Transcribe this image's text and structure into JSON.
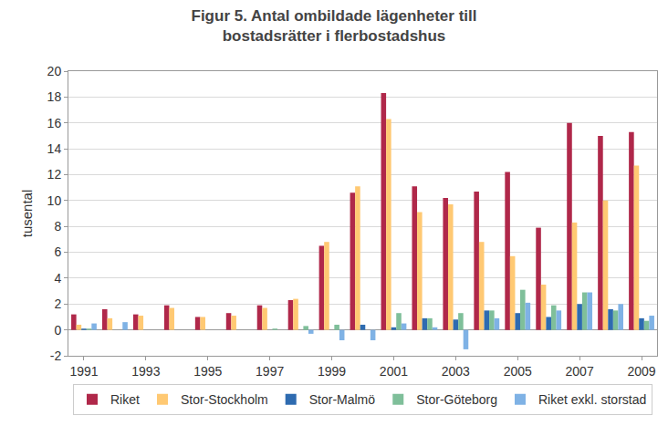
{
  "chart_data": {
    "type": "bar",
    "title": "Figur 5. Antal ombildade lägenheter till\nbostadsrätter i flerbostadshus",
    "y_label": "tusental",
    "categories": [
      "1991",
      null,
      "1993",
      null,
      "1995",
      null,
      "1997",
      null,
      "1999",
      null,
      "2001",
      null,
      "2003",
      null,
      "2005",
      null,
      "2007",
      null,
      "2009"
    ],
    "series": [
      {
        "name": "Riket",
        "color": "#b0284a",
        "values": [
          1.2,
          1.6,
          1.2,
          1.9,
          1.0,
          1.3,
          1.9,
          2.3,
          6.5,
          10.6,
          18.3,
          11.1,
          10.2,
          10.7,
          12.2,
          7.9,
          16.0,
          15.0,
          15.3
        ]
      },
      {
        "name": "Stor-Stockholm",
        "color": "#ffc973",
        "values": [
          0.4,
          0.9,
          1.1,
          1.7,
          1.0,
          1.1,
          1.7,
          2.4,
          6.8,
          11.1,
          16.3,
          9.1,
          9.7,
          6.8,
          5.7,
          3.5,
          8.3,
          10.0,
          12.7
        ]
      },
      {
        "name": "Stor-Malmö",
        "color": "#2e6bb0",
        "values": [
          0.1,
          0.0,
          0.0,
          0.0,
          0.0,
          0.0,
          0.0,
          0.0,
          0.0,
          0.4,
          0.2,
          0.9,
          0.8,
          1.5,
          1.3,
          1.0,
          2.0,
          1.6,
          0.9
        ]
      },
      {
        "name": "Stor-Göteborg",
        "color": "#7fbf9a",
        "values": [
          0.1,
          0.0,
          0.0,
          0.0,
          0.0,
          0.0,
          0.1,
          0.3,
          0.4,
          0.0,
          1.3,
          0.9,
          1.3,
          1.5,
          3.1,
          1.9,
          2.9,
          1.5,
          0.7
        ]
      },
      {
        "name": "Riket exkl. storstad",
        "color": "#7fb2e5",
        "values": [
          0.5,
          0.6,
          0.0,
          0.0,
          0.0,
          0.0,
          0.0,
          -0.3,
          -0.8,
          -0.8,
          0.5,
          0.2,
          -1.5,
          0.9,
          2.1,
          1.5,
          2.9,
          2.0,
          1.1
        ]
      }
    ],
    "ylim": [
      -2,
      20
    ],
    "yticks": [
      -2,
      0,
      2,
      4,
      6,
      8,
      10,
      12,
      14,
      16,
      18,
      20
    ],
    "grid": true,
    "legend": "bottom"
  }
}
